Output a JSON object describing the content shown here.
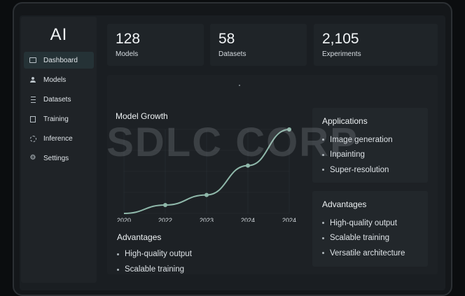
{
  "sidebar": {
    "logo": "AI",
    "items": [
      {
        "label": "Dashboard",
        "icon": "monitor-icon",
        "active": true
      },
      {
        "label": "Models",
        "icon": "user-icon"
      },
      {
        "label": "Datasets",
        "icon": "database-icon"
      },
      {
        "label": "Training",
        "icon": "box-icon"
      },
      {
        "label": "Inference",
        "icon": "ring-icon"
      },
      {
        "label": "Settings",
        "icon": "gear-icon"
      }
    ]
  },
  "stats": [
    {
      "value": "128",
      "label": "Models"
    },
    {
      "value": "58",
      "label": "Datasets"
    },
    {
      "value": "2,105",
      "label": "Experiments"
    }
  ],
  "chart": {
    "title": "Model Growth"
  },
  "chart_data": {
    "type": "line",
    "title": "Model Growth",
    "xlabel": "",
    "ylabel": "",
    "categories": [
      "2020",
      "2022",
      "2023",
      "2024",
      "2024"
    ],
    "series": [
      {
        "values": [
          0,
          10,
          22,
          57,
          100
        ]
      }
    ],
    "ylim": [
      0,
      100
    ],
    "grid": true,
    "line_color": "#8fb8aa"
  },
  "advantages_left": {
    "heading": "Advantages",
    "items": [
      "High-quality output",
      "Scalable training"
    ]
  },
  "applications": {
    "heading": "Applications",
    "items": [
      "Image generation",
      "Inpainting",
      "Super-resolution"
    ]
  },
  "advantages_right": {
    "heading": "Advantages",
    "items": [
      "High-quality output",
      "Scalable training",
      "Versatile architecture"
    ]
  },
  "watermark": "SDLC CORP",
  "colors": {
    "background": "#1a1e22",
    "active_nav": "#253236",
    "accent": "#8fb8aa"
  }
}
